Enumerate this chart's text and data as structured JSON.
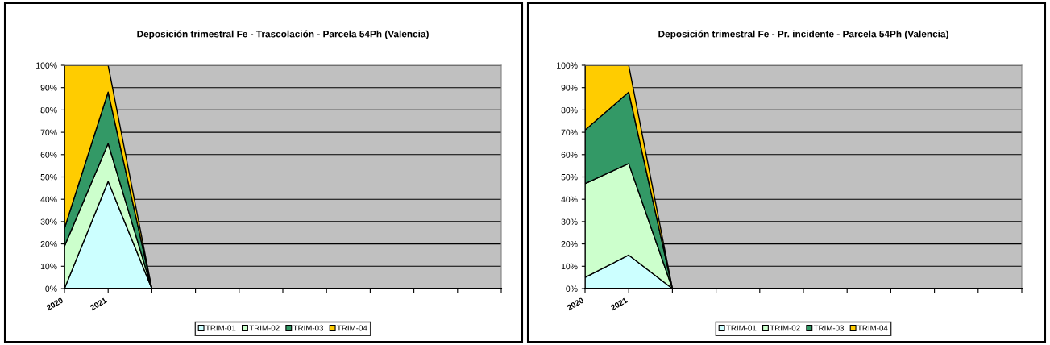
{
  "chart_data": [
    {
      "type": "area",
      "title": "Deposición trimestral Fe - Trascolación - Parcela 54Ph (Valencia)",
      "stacked": true,
      "categories": [
        "2020",
        "2021",
        null,
        null,
        null,
        null,
        null,
        null,
        null,
        null,
        null
      ],
      "series": [
        {
          "name": "TRIM-01",
          "color": "#ccffff",
          "values": [
            0,
            48,
            0,
            0,
            0,
            0,
            0,
            0,
            0,
            0,
            0
          ]
        },
        {
          "name": "TRIM-02",
          "color": "#ccffcc",
          "values": [
            19,
            17,
            0,
            0,
            0,
            0,
            0,
            0,
            0,
            0,
            0
          ]
        },
        {
          "name": "TRIM-03",
          "color": "#339966",
          "values": [
            8,
            23,
            0,
            0,
            0,
            0,
            0,
            0,
            0,
            0,
            0
          ]
        },
        {
          "name": "TRIM-04",
          "color": "#ffcc00",
          "values": [
            73,
            12,
            0,
            0,
            0,
            0,
            0,
            0,
            0,
            0,
            0
          ]
        }
      ],
      "ylim": [
        0,
        100
      ],
      "yticks": [
        {
          "value": 0,
          "label": "0%"
        },
        {
          "value": 10,
          "label": "10%"
        },
        {
          "value": 20,
          "label": "20%"
        },
        {
          "value": 30,
          "label": "30%"
        },
        {
          "value": 40,
          "label": "40%"
        },
        {
          "value": 50,
          "label": "50%"
        },
        {
          "value": 60,
          "label": "60%"
        },
        {
          "value": 70,
          "label": "70%"
        },
        {
          "value": 80,
          "label": "80%"
        },
        {
          "value": 90,
          "label": "90%"
        },
        {
          "value": 100,
          "label": "100%"
        }
      ],
      "grid": "y",
      "legend": "bottom"
    },
    {
      "type": "area",
      "title": "Deposición trimestral Fe - Pr. incidente - Parcela 54Ph (Valencia)",
      "stacked": true,
      "categories": [
        "2020",
        "2021",
        null,
        null,
        null,
        null,
        null,
        null,
        null,
        null,
        null
      ],
      "series": [
        {
          "name": "TRIM-01",
          "color": "#ccffff",
          "values": [
            5,
            15,
            0,
            0,
            0,
            0,
            0,
            0,
            0,
            0,
            0
          ]
        },
        {
          "name": "TRIM-02",
          "color": "#ccffcc",
          "values": [
            42,
            41,
            0,
            0,
            0,
            0,
            0,
            0,
            0,
            0,
            0
          ]
        },
        {
          "name": "TRIM-03",
          "color": "#339966",
          "values": [
            24,
            32,
            0,
            0,
            0,
            0,
            0,
            0,
            0,
            0,
            0
          ]
        },
        {
          "name": "TRIM-04",
          "color": "#ffcc00",
          "values": [
            29,
            12,
            0,
            0,
            0,
            0,
            0,
            0,
            0,
            0,
            0
          ]
        }
      ],
      "ylim": [
        0,
        100
      ],
      "yticks": [
        {
          "value": 0,
          "label": "0%"
        },
        {
          "value": 10,
          "label": "10%"
        },
        {
          "value": 20,
          "label": "20%"
        },
        {
          "value": 30,
          "label": "30%"
        },
        {
          "value": 40,
          "label": "40%"
        },
        {
          "value": 50,
          "label": "50%"
        },
        {
          "value": 60,
          "label": "60%"
        },
        {
          "value": 70,
          "label": "70%"
        },
        {
          "value": 80,
          "label": "80%"
        },
        {
          "value": 90,
          "label": "90%"
        },
        {
          "value": 100,
          "label": "100%"
        }
      ],
      "grid": "y",
      "legend": "bottom"
    }
  ]
}
